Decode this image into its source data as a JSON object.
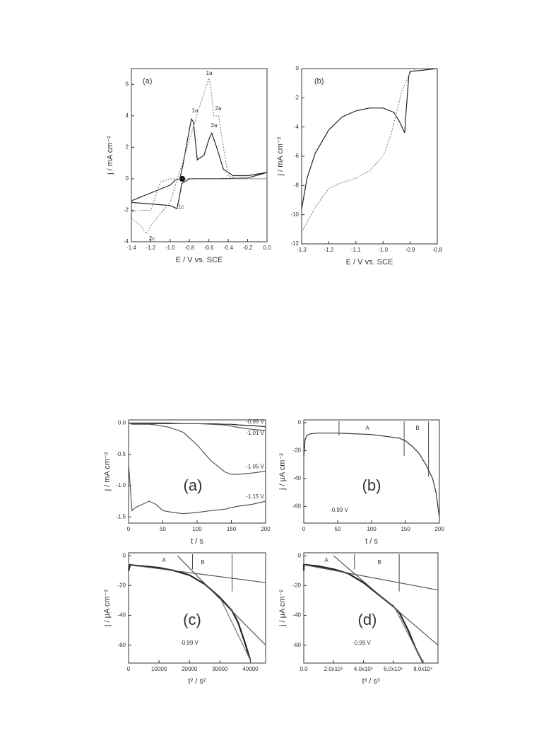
{
  "chart_data": [
    {
      "type": "line",
      "panel": "(a)",
      "xlabel": "E / V vs. SCE",
      "ylabel": "j / mA cm⁻²",
      "xlim": [
        -1.4,
        0.0
      ],
      "ylim": [
        -4,
        7
      ],
      "xticks": [
        -1.4,
        -1.2,
        {
          "value": -1.0,
          "label": "-1.0"
        },
        -0.8,
        -0.6,
        -0.4,
        -0.2,
        {
          "value": 0.0,
          "label": "0.0"
        }
      ],
      "yticks": [
        -4,
        -2,
        0,
        2,
        4,
        6
      ],
      "annotations": [
        "1a",
        "1a",
        "2a",
        "2a",
        "1c",
        "2c"
      ],
      "series": [
        {
          "color": "#222",
          "style": "solid",
          "x": [
            -1.4,
            -1.2,
            -1.0,
            -0.95,
            -0.9,
            -0.87,
            -0.82,
            -0.78,
            -0.76,
            -0.72,
            -0.65,
            -0.6,
            -0.57,
            -0.52,
            -0.45,
            -0.35,
            -0.2,
            0.0,
            -0.2,
            -0.5,
            -0.8,
            -0.88,
            -0.9,
            -0.93,
            -1.0,
            -1.2,
            -1.4
          ],
          "values": [
            -1.4,
            -0.9,
            -0.4,
            -0.1,
            0.0,
            0.8,
            2.5,
            3.8,
            3.6,
            1.2,
            1.5,
            2.5,
            2.9,
            2.0,
            0.6,
            0.2,
            0.2,
            0.4,
            0.05,
            0.0,
            0.0,
            -0.3,
            -1.0,
            -1.9,
            -1.7,
            -1.6,
            -1.5
          ]
        },
        {
          "color": "#888",
          "style": "dotted",
          "x": [
            -1.4,
            -1.3,
            -1.25,
            -1.2,
            -1.1,
            -1.0,
            -0.95,
            -0.9,
            -0.8,
            -0.7,
            -0.6,
            -0.58,
            -0.55,
            -0.5,
            -0.45,
            -0.4,
            -0.3,
            -0.2,
            0.0,
            -0.5,
            -1.0,
            -1.1,
            -1.2,
            -1.3,
            -1.4
          ],
          "values": [
            -2.5,
            -3.0,
            -3.5,
            -3.0,
            -2.2,
            -1.5,
            -0.5,
            0.5,
            2.5,
            4.5,
            6.4,
            5.8,
            4.0,
            4.0,
            2.0,
            0.2,
            0.0,
            0.0,
            0.0,
            0.0,
            0.0,
            -0.2,
            -2.0,
            -2.0,
            -2.1
          ]
        }
      ]
    },
    {
      "type": "line",
      "panel": "(b)",
      "xlabel": "E / V vs. SCE",
      "ylabel": "j / mA cm⁻²",
      "xlim": [
        -1.3,
        -0.8
      ],
      "ylim": [
        -12,
        0
      ],
      "xticks": [
        -1.3,
        -1.2,
        -1.1,
        {
          "value": -1.0,
          "label": "-1.0"
        },
        -0.9,
        -0.8
      ],
      "yticks": [
        -12,
        -10,
        -8,
        -6,
        -4,
        -2,
        0
      ],
      "series": [
        {
          "color": "#222",
          "style": "solid",
          "x": [
            -1.3,
            -1.28,
            -1.25,
            -1.2,
            -1.15,
            -1.1,
            -1.05,
            -1.0,
            -0.96,
            -0.94,
            -0.92,
            -0.915,
            -0.905,
            -0.9,
            -0.85,
            -0.8
          ],
          "values": [
            -9.6,
            -7.5,
            -5.8,
            -4.2,
            -3.3,
            -2.9,
            -2.7,
            -2.7,
            -3.0,
            -3.6,
            -4.4,
            -3.0,
            -0.5,
            -0.2,
            -0.1,
            0.0
          ]
        },
        {
          "color": "#888",
          "style": "dotted",
          "x": [
            -1.3,
            -1.25,
            -1.2,
            -1.15,
            -1.1,
            -1.05,
            -1.0,
            -0.97,
            -0.95,
            -0.93,
            -0.9,
            -0.88,
            -0.85,
            -0.8
          ],
          "values": [
            -11.2,
            -9.5,
            -8.2,
            -7.8,
            -7.5,
            -7.0,
            -6.0,
            -4.5,
            -3.0,
            -1.5,
            -0.3,
            0.0,
            0.0,
            0.0
          ]
        }
      ]
    },
    {
      "type": "line",
      "panel": "(a)",
      "xlabel": "t / s",
      "ylabel": "j / mA cm⁻²",
      "xlim": [
        0,
        200
      ],
      "ylim": [
        -1.6,
        0.05
      ],
      "xticks": [
        0,
        50,
        100,
        150,
        200
      ],
      "yticks": [
        {
          "value": 0.0,
          "label": "0.0"
        },
        -0.5,
        {
          "value": -1.0,
          "label": "-1.0"
        },
        -1.5
      ],
      "x": [
        0,
        5,
        10,
        20,
        30,
        40,
        50,
        60,
        80,
        100,
        120,
        140,
        150,
        160,
        180,
        200
      ],
      "series": [
        {
          "name": "-0.99 V",
          "color": "#222",
          "style": "solid",
          "values": [
            0,
            -0.01,
            -0.01,
            -0.01,
            -0.01,
            -0.01,
            -0.01,
            -0.01,
            -0.01,
            -0.01,
            -0.01,
            -0.02,
            -0.02,
            -0.03,
            -0.04,
            -0.06
          ]
        },
        {
          "name": "-1.01 V",
          "color": "#555",
          "style": "solid",
          "values": [
            0,
            0,
            0,
            0,
            0,
            0,
            0,
            0,
            -0.01,
            -0.01,
            -0.02,
            -0.03,
            -0.05,
            -0.07,
            -0.1,
            -0.12
          ]
        },
        {
          "name": "-1.05 V",
          "color": "#555",
          "style": "solid",
          "values": [
            0,
            -0.02,
            -0.02,
            -0.02,
            -0.02,
            -0.03,
            -0.05,
            -0.07,
            -0.15,
            -0.35,
            -0.6,
            -0.78,
            -0.82,
            -0.82,
            -0.8,
            -0.77
          ]
        },
        {
          "name": "-1.15 V",
          "color": "#555",
          "style": "solid",
          "values": [
            -0.65,
            -1.4,
            -1.35,
            -1.3,
            -1.25,
            -1.3,
            -1.4,
            -1.42,
            -1.45,
            -1.43,
            -1.4,
            -1.38,
            -1.35,
            -1.33,
            -1.3,
            -1.25
          ]
        }
      ]
    },
    {
      "type": "line",
      "panel": "(b)",
      "xlabel": "t / s",
      "ylabel": "j / μA cm⁻²",
      "xlim": [
        0,
        200
      ],
      "ylim": [
        -72,
        2
      ],
      "xticks": [
        0,
        50,
        100,
        150,
        200
      ],
      "yticks": [
        0,
        -20,
        -40,
        -60
      ],
      "annotations": [
        "A",
        "B",
        "-0.99 V"
      ],
      "markers": [
        52,
        148,
        184
      ],
      "series": [
        {
          "color": "#333",
          "style": "solid",
          "x": [
            0,
            2,
            5,
            10,
            20,
            50,
            100,
            140,
            150,
            160,
            170,
            180,
            190,
            195,
            200
          ],
          "values": [
            -25,
            -12,
            -9,
            -8,
            -7.5,
            -7.5,
            -8.5,
            -11,
            -13,
            -17,
            -22,
            -30,
            -40,
            -50,
            -68
          ]
        }
      ]
    },
    {
      "type": "line",
      "panel": "(c)",
      "xlabel": "t² / s²",
      "ylabel": "j / μA cm⁻²",
      "xlim": [
        0,
        45000
      ],
      "ylim": [
        -72,
        2
      ],
      "xticks": [
        0,
        10000,
        20000,
        30000,
        40000
      ],
      "yticks": [
        0,
        -20,
        -40,
        -60
      ],
      "annotations": [
        "A",
        "B",
        "-0.99 V"
      ],
      "markers": [
        21000,
        34000
      ],
      "series": [
        {
          "color": "#222",
          "style": "thick",
          "x": [
            0,
            500,
            2000,
            5000,
            10000,
            15000,
            20000,
            25000,
            30000,
            34000,
            36000,
            38000,
            40000
          ],
          "values": [
            -10,
            -6,
            -6.5,
            -7,
            -8,
            -10,
            -13,
            -19,
            -28,
            -37,
            -45,
            -57,
            -70
          ]
        },
        {
          "color": "#555",
          "style": "solid",
          "x": [
            0,
            45000
          ],
          "values": [
            -6,
            -18
          ]
        },
        {
          "color": "#555",
          "style": "solid",
          "x": [
            16000,
            45000
          ],
          "values": [
            0,
            -60
          ]
        },
        {
          "color": "#777",
          "style": "solid",
          "x": [
            30000,
            40000
          ],
          "values": [
            -28,
            -70
          ]
        }
      ]
    },
    {
      "type": "line",
      "panel": "(d)",
      "xlabel": "t³ / s³",
      "ylabel": "j / μA cm⁻²",
      "xlim": [
        0,
        9000000
      ],
      "ylim": [
        -72,
        2
      ],
      "xticks": [
        {
          "value": 0,
          "label": "0.0"
        },
        {
          "value": 2000000,
          "label": "2.0x10⁶"
        },
        {
          "value": 4000000,
          "label": "4.0x10⁶"
        },
        {
          "value": 6000000,
          "label": "6.0x10⁶"
        },
        {
          "value": 8000000,
          "label": "8.0x10⁶"
        }
      ],
      "yticks": [
        0,
        -20,
        -40,
        -60
      ],
      "annotations": [
        "A",
        "B",
        "-0.99 V"
      ],
      "markers": [
        3400000,
        6400000
      ],
      "series": [
        {
          "color": "#222",
          "style": "thick",
          "x": [
            0,
            10000,
            100000,
            500000,
            1000000,
            2000000,
            3000000,
            4000000,
            5000000,
            6000000,
            6400000,
            7000000,
            7500000,
            8000000
          ],
          "values": [
            -10,
            -6,
            -6,
            -6.5,
            -7,
            -9,
            -12,
            -18,
            -26,
            -34,
            -38,
            -50,
            -62,
            -72
          ]
        },
        {
          "color": "#555",
          "style": "solid",
          "x": [
            0,
            9000000
          ],
          "values": [
            -6,
            -23
          ]
        },
        {
          "color": "#555",
          "style": "solid",
          "x": [
            2000000,
            9000000
          ],
          "values": [
            0,
            -60
          ]
        },
        {
          "color": "#777",
          "style": "solid",
          "x": [
            6000000,
            8000000
          ],
          "values": [
            -33,
            -72
          ]
        }
      ]
    }
  ]
}
